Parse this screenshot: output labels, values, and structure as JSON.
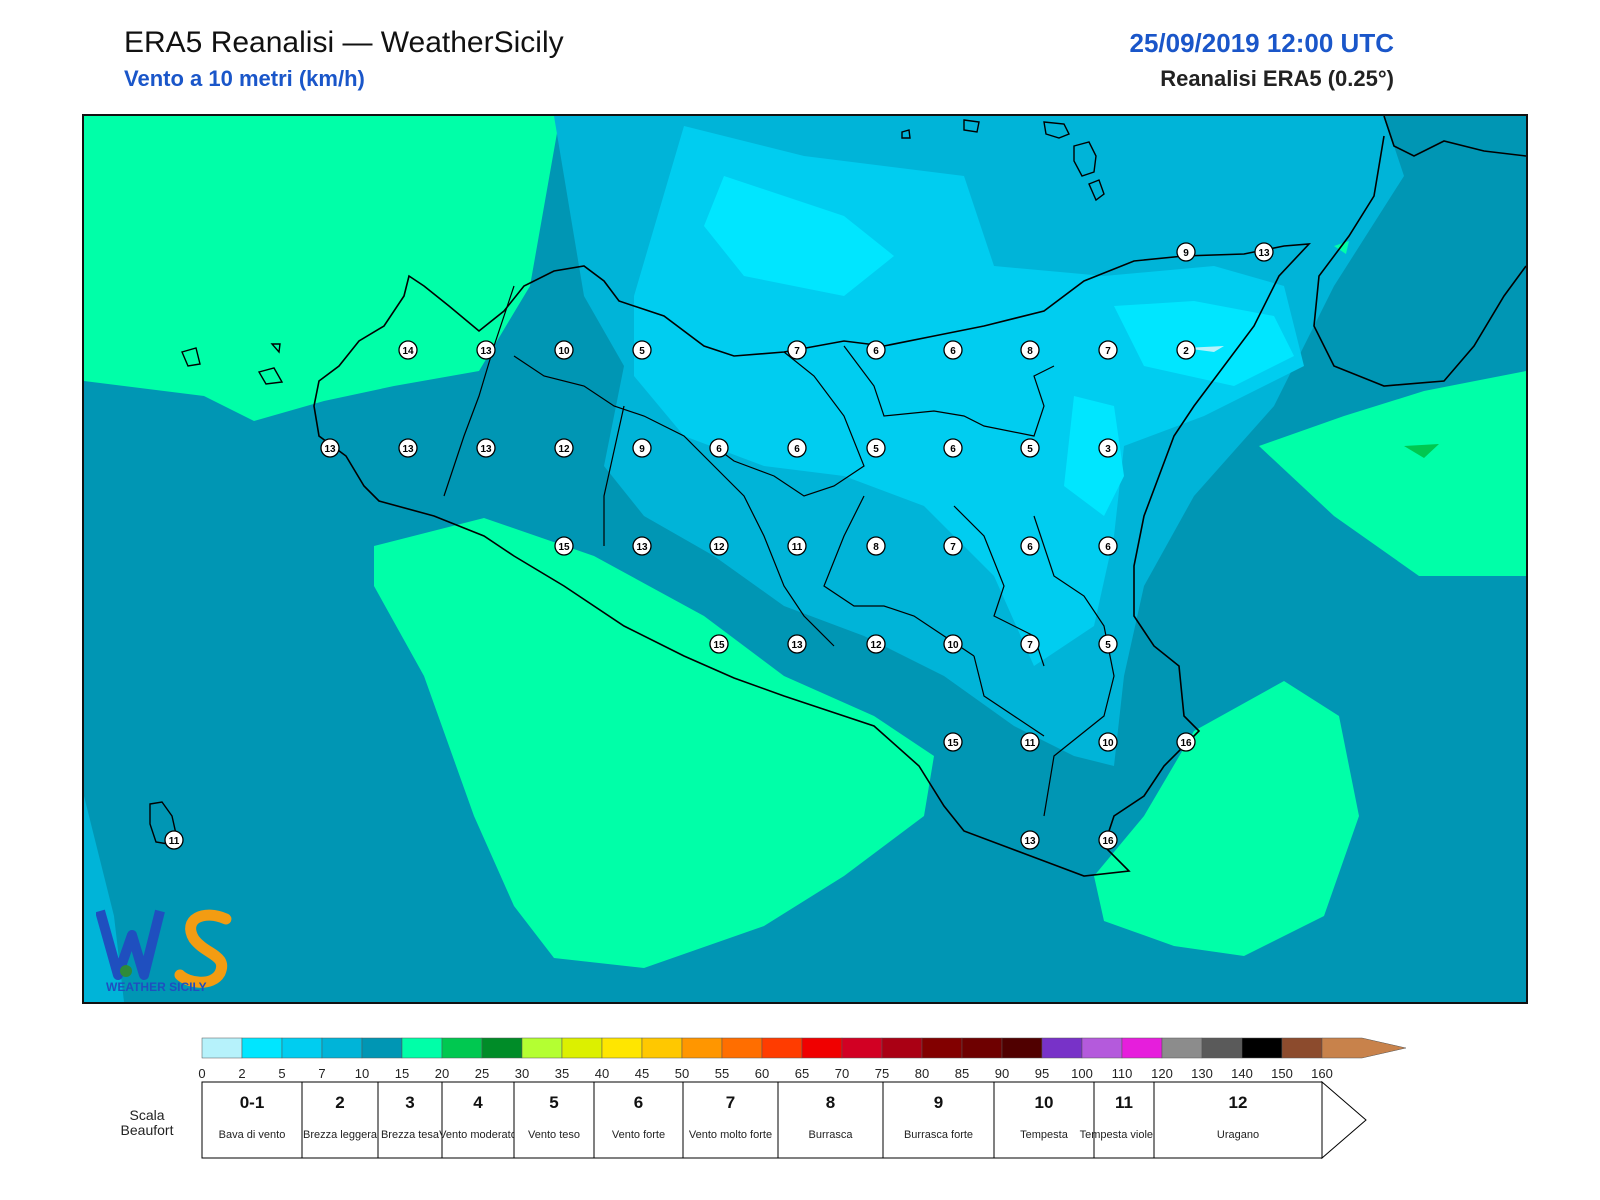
{
  "header": {
    "title": "ERA5 Reanalisi — WeatherSicily",
    "subtitle": "Vento a 10 metri (km/h)",
    "datetime": "25/09/2019 12:00 UTC",
    "model": "Reanalisi ERA5 (0.25°)"
  },
  "logo": {
    "icon": "weathersicily-logo",
    "text": "WEATHER SICILY"
  },
  "colorbar": {
    "ticks": [
      "0",
      "2",
      "5",
      "7",
      "10",
      "15",
      "20",
      "25",
      "30",
      "35",
      "40",
      "45",
      "50",
      "55",
      "60",
      "65",
      "70",
      "75",
      "80",
      "85",
      "90",
      "95",
      "100",
      "110",
      "120",
      "130",
      "140",
      "150",
      "160"
    ],
    "colors": [
      "#b6f2fb",
      "#00e6ff",
      "#00cdf0",
      "#00b4d8",
      "#0096b4",
      "#00ffa8",
      "#00c850",
      "#008c28",
      "#b4ff32",
      "#dcf000",
      "#ffe600",
      "#ffc800",
      "#ff9600",
      "#ff6e00",
      "#ff3c00",
      "#f00000",
      "#d20023",
      "#aa0014",
      "#820000",
      "#6e0000",
      "#500000",
      "#7832c8",
      "#b45adc",
      "#e61edc",
      "#8c8c8c",
      "#5a5a5a",
      "#000000",
      "#8c4b2d",
      "#c8824b"
    ]
  },
  "beaufort": {
    "label": "Scala Beaufort",
    "classes": [
      {
        "num": "0-1",
        "desc": "Bava di vento"
      },
      {
        "num": "2",
        "desc": "Brezza leggera"
      },
      {
        "num": "3",
        "desc": "Brezza tesa"
      },
      {
        "num": "4",
        "desc": "Vento moderato"
      },
      {
        "num": "5",
        "desc": "Vento teso"
      },
      {
        "num": "6",
        "desc": "Vento forte"
      },
      {
        "num": "7",
        "desc": "Vento molto forte"
      },
      {
        "num": "8",
        "desc": "Burrasca"
      },
      {
        "num": "9",
        "desc": "Burrasca forte"
      },
      {
        "num": "10",
        "desc": "Tempesta"
      },
      {
        "num": "11",
        "desc": "Tempesta violenta"
      },
      {
        "num": "12",
        "desc": "Uragano"
      }
    ]
  },
  "stations": [
    {
      "v": "9"
    },
    {
      "v": "13"
    },
    {
      "v": "14"
    },
    {
      "v": "13"
    },
    {
      "v": "10"
    },
    {
      "v": "5"
    },
    {
      "v": "7"
    },
    {
      "v": "6"
    },
    {
      "v": "6"
    },
    {
      "v": "8"
    },
    {
      "v": "7"
    },
    {
      "v": "2"
    },
    {
      "v": "13"
    },
    {
      "v": "13"
    },
    {
      "v": "13"
    },
    {
      "v": "12"
    },
    {
      "v": "9"
    },
    {
      "v": "6"
    },
    {
      "v": "6"
    },
    {
      "v": "5"
    },
    {
      "v": "6"
    },
    {
      "v": "5"
    },
    {
      "v": "3"
    },
    {
      "v": "15"
    },
    {
      "v": "13"
    },
    {
      "v": "12"
    },
    {
      "v": "11"
    },
    {
      "v": "8"
    },
    {
      "v": "7"
    },
    {
      "v": "6"
    },
    {
      "v": "6"
    },
    {
      "v": "15"
    },
    {
      "v": "13"
    },
    {
      "v": "12"
    },
    {
      "v": "10"
    },
    {
      "v": "7"
    },
    {
      "v": "5"
    },
    {
      "v": "15"
    },
    {
      "v": "11"
    },
    {
      "v": "10"
    },
    {
      "v": "16"
    },
    {
      "v": "13"
    },
    {
      "v": "16"
    },
    {
      "v": "11"
    }
  ]
}
